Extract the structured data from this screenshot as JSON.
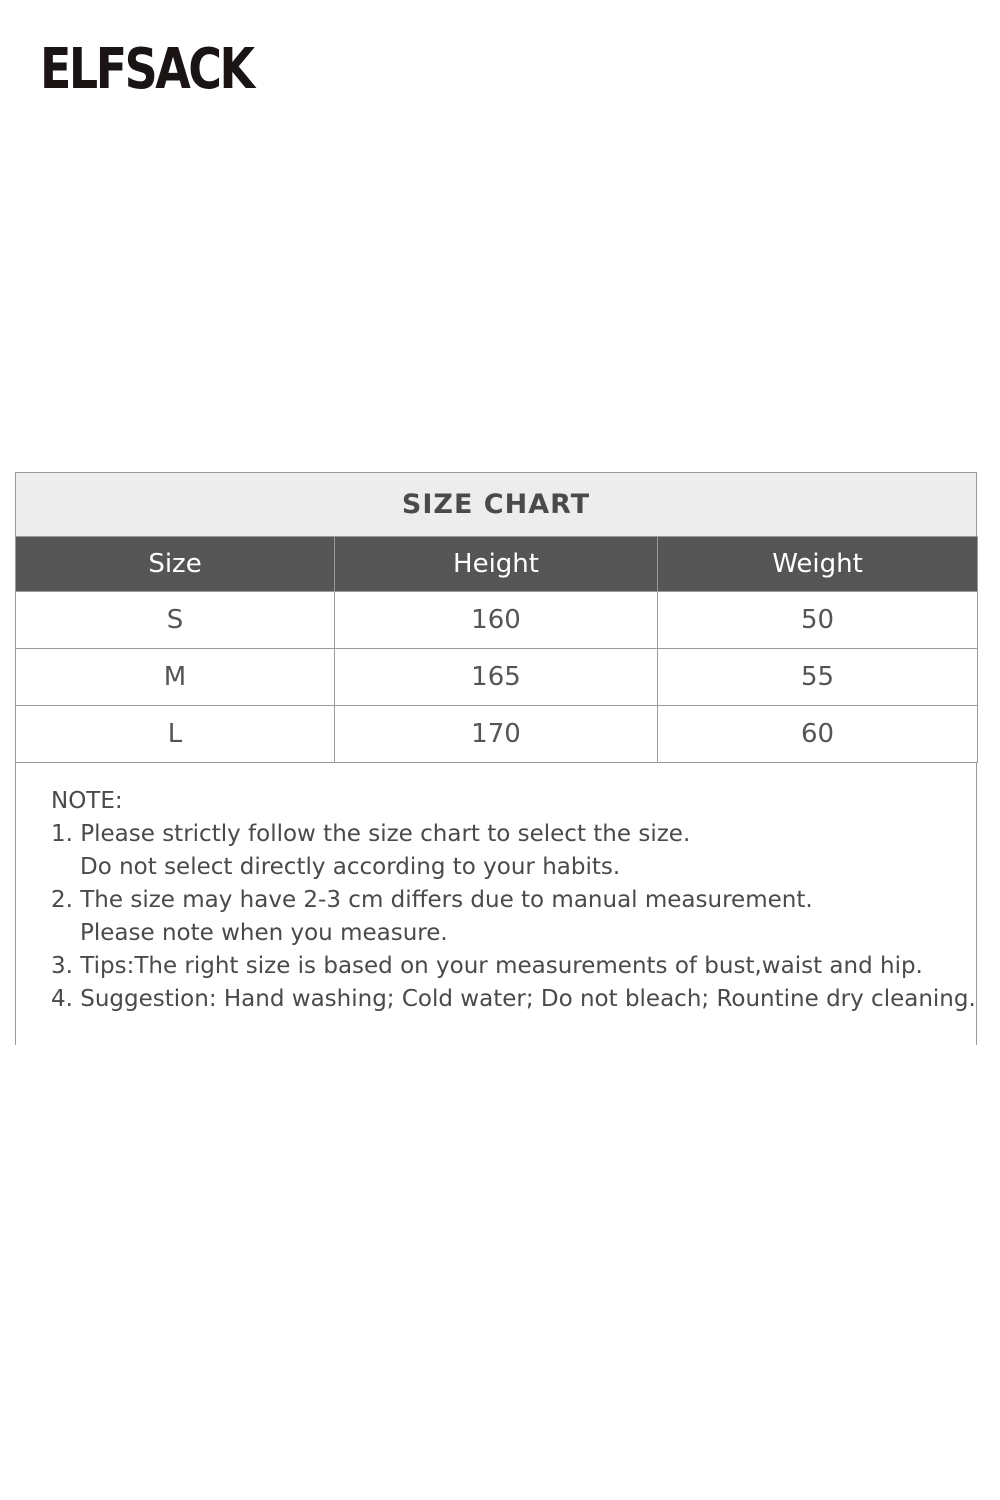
{
  "logo": {
    "text": "ELFSACK"
  },
  "size_chart": {
    "title": "SIZE CHART",
    "columns": [
      "Size",
      "Height",
      "Weight"
    ],
    "rows": [
      [
        "S",
        "160",
        "50"
      ],
      [
        "M",
        "165",
        "55"
      ],
      [
        "L",
        "170",
        "60"
      ]
    ]
  },
  "notes": {
    "heading": "NOTE:",
    "lines": [
      "1. Please strictly follow the size chart to select the size.",
      "Do not select directly according to your habits.",
      "2. The size may have 2-3 cm differs due to manual measurement.",
      "Please note when you measure.",
      "3. Tips:The right size is based on your measurements of bust,waist and hip.",
      "4. Suggestion: Hand washing; Cold water; Do not bleach; Rountine dry cleaning."
    ]
  },
  "colors": {
    "header_bg": "#555555",
    "title_bg": "#ededed",
    "logo": "#1a1414"
  }
}
